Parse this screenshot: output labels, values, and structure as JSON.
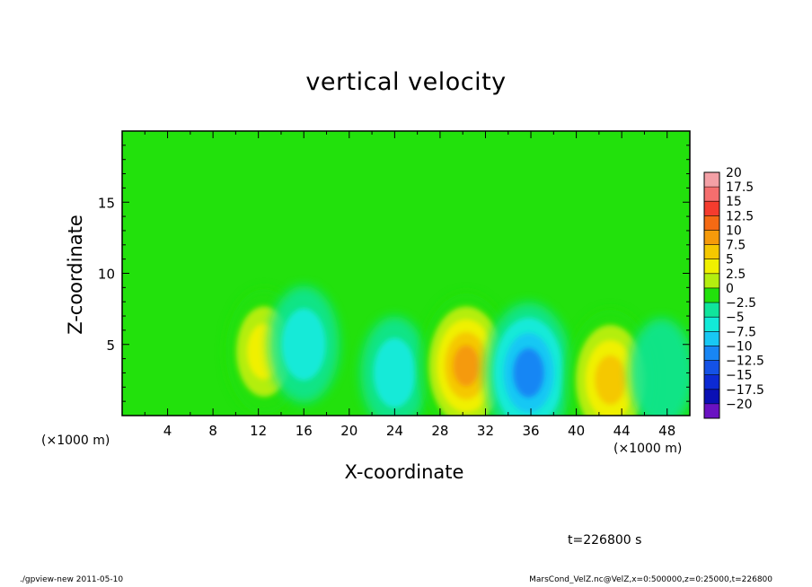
{
  "chart_data": {
    "type": "heatmap",
    "title": "vertical velocity",
    "xlabel": "X-coordinate",
    "ylabel": "Z-coordinate",
    "x_unit_label": "(×1000 m)",
    "x_ticks": [
      4,
      8,
      12,
      16,
      20,
      24,
      28,
      32,
      36,
      40,
      44,
      48
    ],
    "y_ticks": [
      5,
      10,
      15
    ],
    "xlim": [
      0,
      50
    ],
    "ylim": [
      0,
      20
    ],
    "colorbar": {
      "levels": [
        20,
        17.5,
        15,
        12.5,
        10,
        7.5,
        5,
        2.5,
        0,
        -2.5,
        -5,
        -7.5,
        -10,
        -12.5,
        -15,
        -17.5,
        -20
      ],
      "level_labels": [
        "20",
        "17.5",
        "15",
        "12.5",
        "10",
        "7.5",
        "5",
        "2.5",
        "0",
        "−2.5",
        "−5",
        "−7.5",
        "−10",
        "−12.5",
        "−15",
        "−17.5",
        "−20"
      ],
      "colors": [
        "#f4a0a6",
        "#f56e6e",
        "#f53c2e",
        "#f56a14",
        "#f59a0a",
        "#f5c800",
        "#f0f000",
        "#b4ee10",
        "#22e10c",
        "#10e59c",
        "#12ead8",
        "#18c8f4",
        "#1886f4",
        "#1452e6",
        "#0c2ad4",
        "#0a10b4",
        "#6a12c2"
      ]
    },
    "features": [
      {
        "x": 12.5,
        "z": 4.5,
        "w": 8.0
      },
      {
        "x": 16.0,
        "z": 5.0,
        "w": -6.0
      },
      {
        "x": 24.0,
        "z": 3.0,
        "w": -5.0
      },
      {
        "x": 30.3,
        "z": 3.5,
        "w": 13.0
      },
      {
        "x": 35.8,
        "z": 3.0,
        "w": -12.0
      },
      {
        "x": 43.0,
        "z": 2.5,
        "w": 12.0
      },
      {
        "x": 47.5,
        "z": 3.0,
        "w": -4.0
      }
    ],
    "grid": false,
    "legend": "right colorbar"
  },
  "time_label": "t=226800 s",
  "footer_left": "./gpview-new   2011-05-10",
  "footer_right": "MarsCond_VelZ.nc@VelZ,x=0:500000,z=0:25000,t=226800"
}
